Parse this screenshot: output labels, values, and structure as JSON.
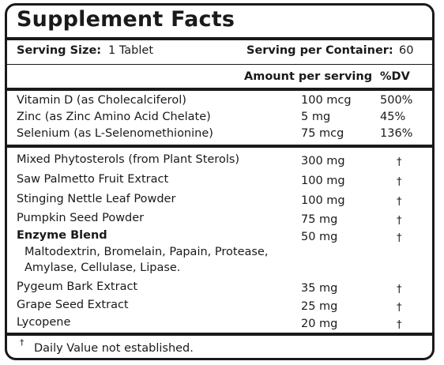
{
  "title": "Supplement Facts",
  "serving": {
    "size_label": "Serving Size:",
    "size_value": "1 Tablet",
    "container_label": "Serving per Container:",
    "container_value": "60"
  },
  "headers": {
    "amount": "Amount per serving",
    "dv": "%DV"
  },
  "vitamins": [
    {
      "name": "Vitamin D (as Cholecalciferol)",
      "amount": "100 mcg",
      "dv": "500%"
    },
    {
      "name": "Zinc (as Zinc Amino Acid Chelate)",
      "amount": "5 mg",
      "dv": "45%"
    },
    {
      "name": "Selenium (as L-Selenomethionine)",
      "amount": "75 mcg",
      "dv": "136%"
    }
  ],
  "others": [
    {
      "name": "Mixed Phytosterols (from Plant Sterols)",
      "amount": "300 mg",
      "dv": "†"
    },
    {
      "name": "Saw Palmetto Fruit Extract",
      "amount": "100 mg",
      "dv": "†"
    },
    {
      "name": "Stinging Nettle Leaf Powder",
      "amount": "100 mg",
      "dv": "†"
    },
    {
      "name": "Pumpkin Seed Powder",
      "amount": "75 mg",
      "dv": "†"
    }
  ],
  "blend": {
    "name": "Enzyme Blend",
    "amount": "50 mg",
    "dv": "†",
    "line1": "Maltodextrin, Bromelain, Papain, Protease,",
    "line2": "Amylase, Cellulase, Lipase."
  },
  "others2": [
    {
      "name": "Pygeum Bark Extract",
      "amount": "35 mg",
      "dv": "†"
    },
    {
      "name": "Grape Seed Extract",
      "amount": "25 mg",
      "dv": "†"
    },
    {
      "name": "Lycopene",
      "amount": "20 mg",
      "dv": "†"
    }
  ],
  "footnote": {
    "mark": "†",
    "text": "Daily Value not established."
  }
}
